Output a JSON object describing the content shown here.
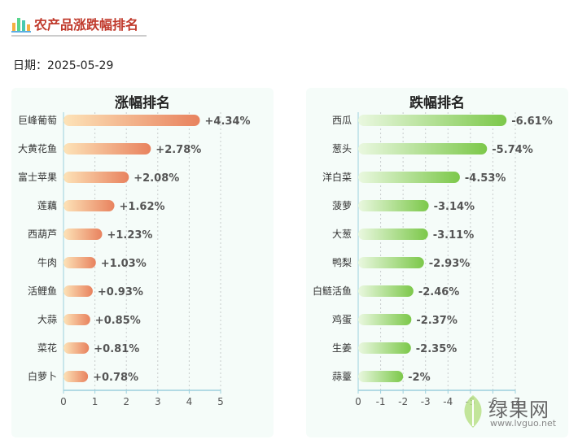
{
  "header": {
    "title": "农产品涨跌幅排名",
    "icon": "bar-chart-icon",
    "title_color": "#c0392b"
  },
  "date": {
    "label": "日期：2025-05-29"
  },
  "chart_data": [
    {
      "type": "bar",
      "orientation": "horizontal",
      "title": "涨幅排名",
      "categories": [
        "巨峰葡萄",
        "大黄花鱼",
        "富士苹果",
        "莲藕",
        "西葫芦",
        "牛肉",
        "活鲤鱼",
        "大蒜",
        "菜花",
        "白萝卜"
      ],
      "values": [
        4.34,
        2.78,
        2.08,
        1.62,
        1.23,
        1.03,
        0.93,
        0.85,
        0.81,
        0.78
      ],
      "value_labels": [
        "+4.34%",
        "+2.78%",
        "+2.08%",
        "+1.62%",
        "+1.23%",
        "+1.03%",
        "+0.93%",
        "+0.85%",
        "+0.81%",
        "+0.78%"
      ],
      "xlim": [
        0,
        5
      ],
      "ticks": [
        "0",
        "1",
        "2",
        "3",
        "4",
        "5"
      ],
      "grid": true,
      "colors": {
        "start": "#fde3b8",
        "end": "#e8825e"
      }
    },
    {
      "type": "bar",
      "orientation": "horizontal",
      "title": "跌幅排名",
      "categories": [
        "西瓜",
        "葱头",
        "洋白菜",
        "菠萝",
        "大葱",
        "鸭梨",
        "白鲢活鱼",
        "鸡蛋",
        "生姜",
        "蒜薹"
      ],
      "values": [
        -6.61,
        -5.74,
        -4.53,
        -3.14,
        -3.11,
        -2.93,
        -2.46,
        -2.37,
        -2.35,
        -2.0
      ],
      "value_labels": [
        "-6.61%",
        "-5.74%",
        "-4.53%",
        "-3.14%",
        "-3.11%",
        "-2.93%",
        "-2.46%",
        "-2.37%",
        "-2.35%",
        "-2%"
      ],
      "xlim": [
        0,
        -7
      ],
      "ticks": [
        "0",
        "-1",
        "-2",
        "-3",
        "-4",
        "-5",
        "-6",
        "-7"
      ],
      "grid": true,
      "colors": {
        "start": "#eaf8e0",
        "end": "#7cc84a"
      }
    }
  ],
  "watermark": {
    "brand": "绿果网",
    "url": "www.lvguo.net",
    "icon": "leaf-icon"
  }
}
